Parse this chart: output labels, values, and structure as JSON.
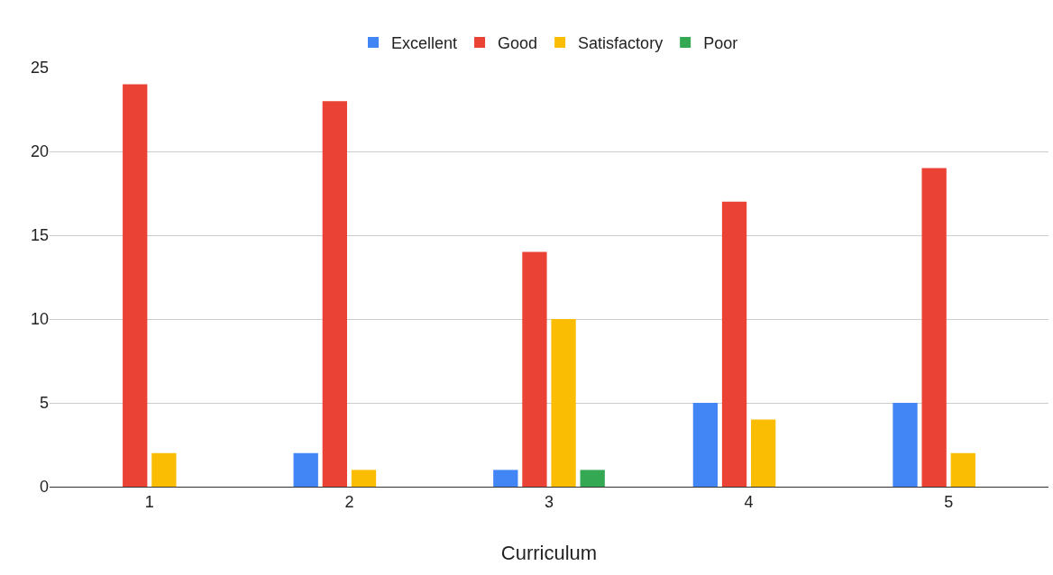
{
  "chart_data": {
    "type": "bar",
    "xlabel": "Curriculum",
    "categories": [
      "1",
      "2",
      "3",
      "4",
      "5"
    ],
    "series": [
      {
        "name": "Excellent",
        "color": "#4285f4",
        "values": [
          0,
          2,
          1,
          5,
          5
        ]
      },
      {
        "name": "Good",
        "color": "#ea4335",
        "values": [
          24,
          23,
          14,
          17,
          19
        ]
      },
      {
        "name": "Satisfactory",
        "color": "#fbbc04",
        "values": [
          2,
          1,
          10,
          4,
          2
        ]
      },
      {
        "name": "Poor",
        "color": "#34a853",
        "values": [
          0,
          0,
          1,
          0,
          0
        ]
      }
    ],
    "ylim": [
      0,
      25
    ],
    "yticks": [
      0,
      5,
      10,
      15,
      20,
      25
    ],
    "grid": "y",
    "legend": "top"
  }
}
